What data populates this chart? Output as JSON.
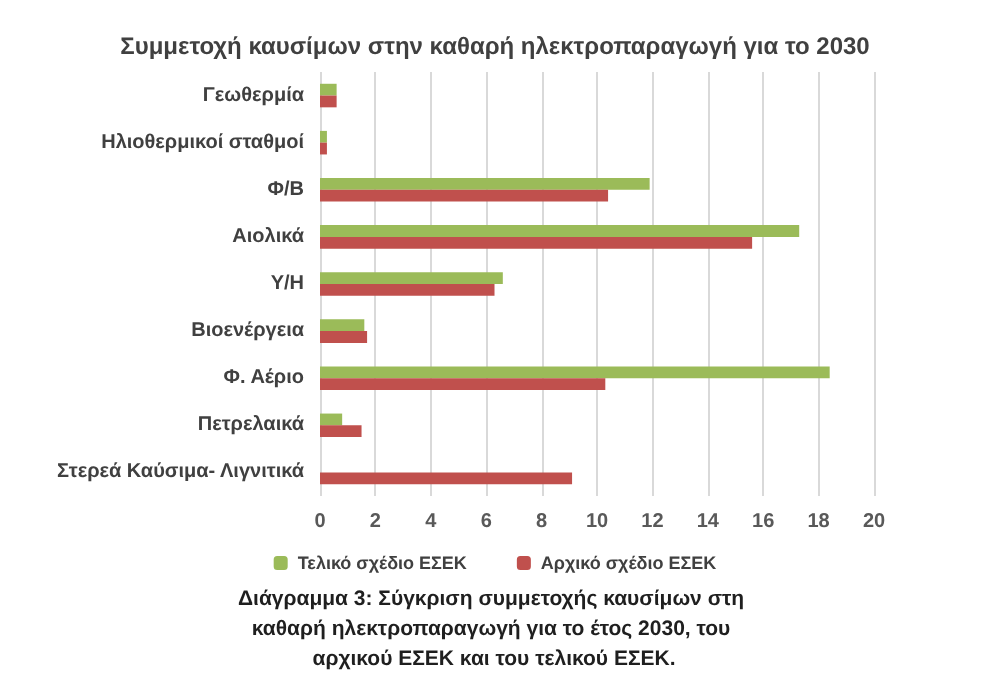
{
  "chart_data": {
    "type": "bar",
    "orientation": "horizontal",
    "title": "Συμμετοχή καυσίμων στην καθαρή ηλεκτροπαραγωγή για το 2030",
    "categories": [
      "Γεωθερμία",
      "Ηλιοθερμικοί σταθμοί",
      "Φ/Β",
      "Αιολικά",
      "Υ/Η",
      "Βιοενέργεια",
      "Φ. Αέριο",
      "Πετρελαικά",
      "Στερεά Καύσιμα- Λιγνιτικά"
    ],
    "series": [
      {
        "name": "Τελικό σχέδιο ΕΣΕΚ",
        "color": "#9bbb59",
        "values": [
          0.6,
          0.25,
          11.9,
          17.3,
          6.6,
          1.6,
          18.4,
          0.8,
          null
        ]
      },
      {
        "name": "Αρχικό σχέδιο ΕΣΕΚ",
        "color": "#c0504d",
        "values": [
          0.6,
          0.25,
          10.4,
          15.6,
          6.3,
          1.7,
          10.3,
          1.5,
          9.1
        ]
      }
    ],
    "xlim": [
      0,
      20
    ],
    "xticks": [
      0,
      2,
      4,
      6,
      8,
      10,
      12,
      14,
      16,
      18,
      20
    ],
    "grid": "x",
    "legend": "bottom",
    "annotations": [
      "Διάγραμμα 3: Σύγκριση συμμετοχής καυσίμων στη καθαρή ηλεκτροπαραγωγή για το έτος 2030, του αρχικού ΕΣΕΚ και του τελικού ΕΣΕΚ."
    ]
  }
}
